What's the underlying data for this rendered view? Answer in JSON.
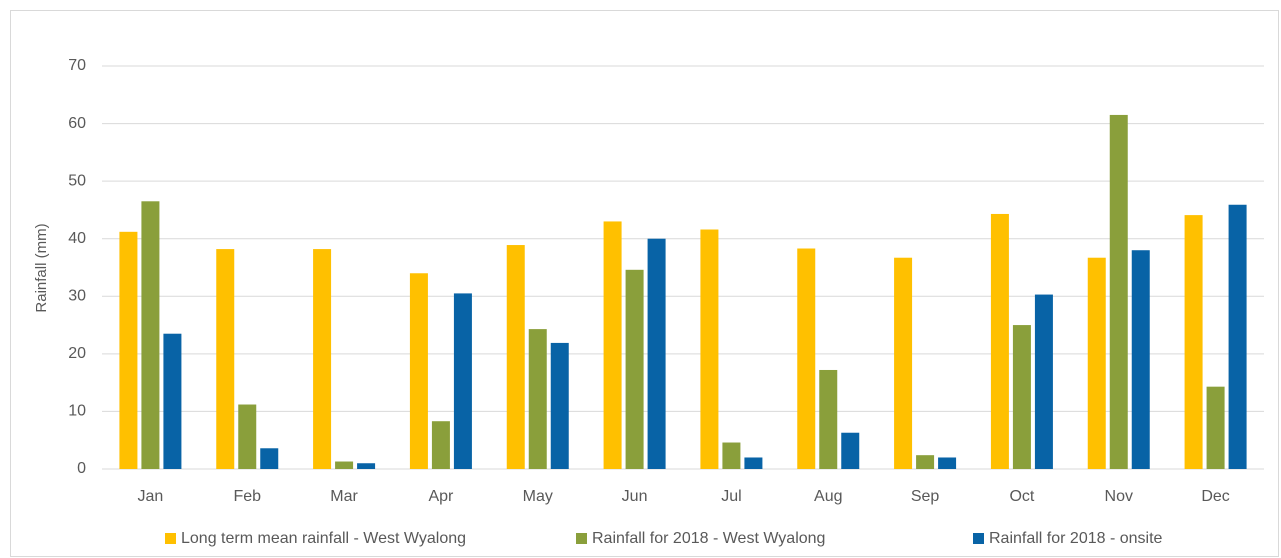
{
  "chart_data": {
    "type": "bar",
    "ylabel": "Rainfall (mm)",
    "categories": [
      "Jan",
      "Feb",
      "Mar",
      "Apr",
      "May",
      "Jun",
      "Jul",
      "Aug",
      "Sep",
      "Oct",
      "Nov",
      "Dec"
    ],
    "series": [
      {
        "name": "Long term mean rainfall - West Wyalong",
        "color": "#ffc000",
        "values": [
          41.2,
          38.2,
          38.2,
          34,
          38.9,
          43,
          41.6,
          38.3,
          36.7,
          44.3,
          36.7,
          44.1
        ]
      },
      {
        "name": "Rainfall for 2018 - West Wyalong",
        "color": "#8a9f3b",
        "values": [
          46.5,
          11.2,
          1.3,
          8.3,
          24.3,
          34.6,
          4.6,
          17.2,
          2.4,
          25,
          61.5,
          14.3
        ]
      },
      {
        "name": "Rainfall for 2018 - onsite",
        "color": "#0863a6",
        "values": [
          23.5,
          3.6,
          1.0,
          30.5,
          21.9,
          40,
          2,
          6.3,
          2,
          30.3,
          38,
          45.9
        ]
      }
    ],
    "ylim": [
      0,
      70
    ],
    "yticks": [
      0,
      10,
      20,
      30,
      40,
      50,
      60,
      70
    ],
    "grid": true,
    "legend": "bottom"
  }
}
